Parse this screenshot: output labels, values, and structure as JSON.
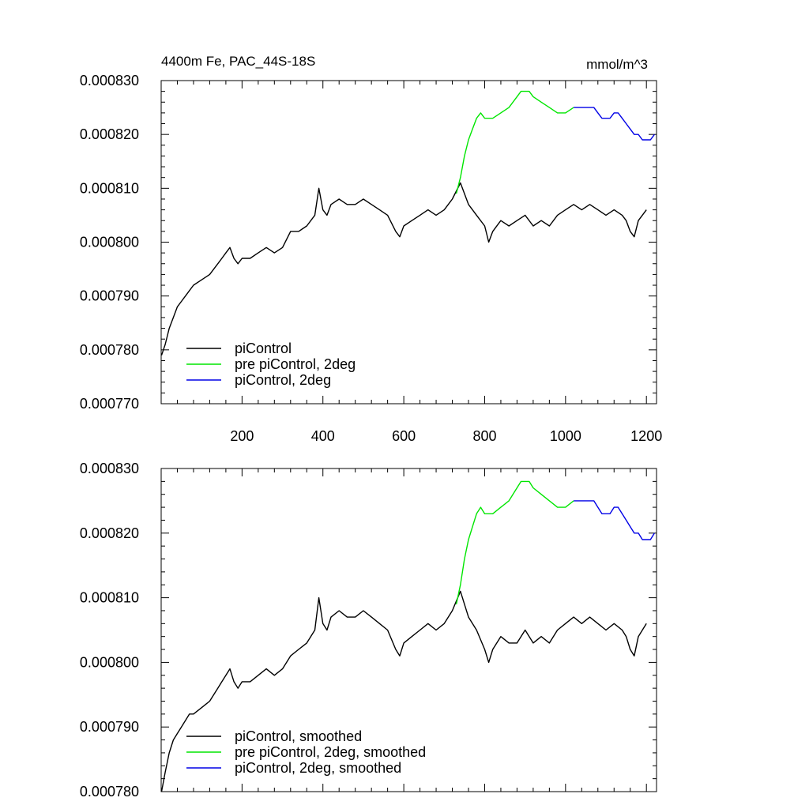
{
  "chart_data": [
    {
      "type": "line",
      "title": "4400m Fe, PAC_44S-18S",
      "units": "mmol/m^3",
      "xlim": [
        0,
        1225
      ],
      "ylim": [
        0.00077,
        0.00083
      ],
      "xticks": [
        200,
        400,
        600,
        800,
        1000,
        1200
      ],
      "xtick_labels": [
        "200",
        "400",
        "600",
        "800",
        "1000",
        "1200"
      ],
      "yticks": [
        0.00077,
        0.00078,
        0.00079,
        0.0008,
        0.00081,
        0.00082,
        0.00083
      ],
      "ytick_labels": [
        "0.000770",
        "0.000780",
        "0.000790",
        "0.000800",
        "0.000810",
        "0.000820",
        "0.000830"
      ],
      "legend_position": "bottom-left",
      "series": [
        {
          "name": "piControl",
          "color": "#000000",
          "x": [
            1,
            10,
            20,
            30,
            40,
            50,
            60,
            70,
            80,
            100,
            120,
            140,
            150,
            160,
            170,
            180,
            190,
            200,
            220,
            240,
            260,
            280,
            300,
            320,
            340,
            360,
            380,
            390,
            400,
            410,
            420,
            440,
            460,
            480,
            500,
            520,
            540,
            560,
            580,
            590,
            600,
            620,
            640,
            660,
            680,
            700,
            720,
            740,
            750,
            760,
            780,
            800,
            810,
            820,
            840,
            860,
            880,
            900,
            920,
            940,
            960,
            980,
            1000,
            1020,
            1040,
            1060,
            1080,
            1100,
            1120,
            1140,
            1150,
            1160,
            1170,
            1180,
            1200
          ],
          "y": [
            0.000779,
            0.000781,
            0.000784,
            0.000786,
            0.000788,
            0.000789,
            0.00079,
            0.000791,
            0.000792,
            0.000793,
            0.000794,
            0.000796,
            0.000797,
            0.000798,
            0.000799,
            0.000797,
            0.000796,
            0.000797,
            0.000797,
            0.000798,
            0.000799,
            0.000798,
            0.000799,
            0.000802,
            0.000802,
            0.000803,
            0.000805,
            0.00081,
            0.000806,
            0.000805,
            0.000807,
            0.000808,
            0.000807,
            0.000807,
            0.000808,
            0.000807,
            0.000806,
            0.000805,
            0.000802,
            0.000801,
            0.000803,
            0.000804,
            0.000805,
            0.000806,
            0.000805,
            0.000806,
            0.000808,
            0.000811,
            0.000809,
            0.000807,
            0.000805,
            0.000803,
            0.0008,
            0.000802,
            0.000804,
            0.000803,
            0.000804,
            0.000805,
            0.000803,
            0.000804,
            0.000803,
            0.000805,
            0.000806,
            0.000807,
            0.000806,
            0.000807,
            0.000806,
            0.000805,
            0.000806,
            0.000805,
            0.000804,
            0.000802,
            0.000801,
            0.000804,
            0.000806
          ]
        },
        {
          "name": "pre piControl, 2deg",
          "color": "#00e600",
          "x": [
            730,
            740,
            750,
            760,
            770,
            780,
            790,
            800,
            820,
            840,
            860,
            880,
            890,
            900,
            910,
            920,
            940,
            960,
            980,
            1000,
            1020
          ],
          "y": [
            0.000809,
            0.000812,
            0.000816,
            0.000819,
            0.000821,
            0.000823,
            0.000824,
            0.000823,
            0.000823,
            0.000824,
            0.000825,
            0.000827,
            0.000828,
            0.000828,
            0.000828,
            0.000827,
            0.000826,
            0.000825,
            0.000824,
            0.000824,
            0.000825
          ]
        },
        {
          "name": "piControl, 2deg",
          "color": "#0000e6",
          "x": [
            1020,
            1040,
            1060,
            1070,
            1080,
            1090,
            1100,
            1110,
            1120,
            1130,
            1140,
            1150,
            1160,
            1170,
            1180,
            1190,
            1200,
            1210,
            1220
          ],
          "y": [
            0.000825,
            0.000825,
            0.000825,
            0.000825,
            0.000824,
            0.000823,
            0.000823,
            0.000823,
            0.000824,
            0.000824,
            0.000823,
            0.000822,
            0.000821,
            0.00082,
            0.00082,
            0.000819,
            0.000819,
            0.000819,
            0.00082
          ]
        }
      ]
    },
    {
      "type": "line",
      "xlim": [
        0,
        1225
      ],
      "ylim": [
        0.00078,
        0.00083
      ],
      "xticks": [
        200,
        400,
        600,
        800,
        1000,
        1200
      ],
      "yticks": [
        0.00078,
        0.00079,
        0.0008,
        0.00081,
        0.00082,
        0.00083
      ],
      "ytick_labels": [
        "0.000780",
        "0.000790",
        "0.000800",
        "0.000810",
        "0.000820",
        "0.000830"
      ],
      "legend_position": "bottom-left",
      "series": [
        {
          "name": "piControl, smoothed",
          "color": "#000000",
          "x": [
            1,
            10,
            20,
            30,
            40,
            50,
            60,
            70,
            80,
            100,
            120,
            140,
            150,
            160,
            170,
            180,
            190,
            200,
            220,
            240,
            260,
            280,
            300,
            320,
            340,
            360,
            380,
            390,
            400,
            410,
            420,
            440,
            460,
            480,
            500,
            520,
            540,
            560,
            580,
            590,
            600,
            620,
            640,
            660,
            680,
            700,
            720,
            740,
            750,
            760,
            780,
            800,
            810,
            820,
            840,
            860,
            880,
            900,
            920,
            940,
            960,
            980,
            1000,
            1020,
            1040,
            1060,
            1080,
            1100,
            1120,
            1140,
            1150,
            1160,
            1170,
            1180,
            1200
          ],
          "y": [
            0.00078,
            0.000783,
            0.000786,
            0.000788,
            0.000789,
            0.00079,
            0.000791,
            0.000792,
            0.000792,
            0.000793,
            0.000794,
            0.000796,
            0.000797,
            0.000798,
            0.000799,
            0.000797,
            0.000796,
            0.000797,
            0.000797,
            0.000798,
            0.000799,
            0.000798,
            0.000799,
            0.000801,
            0.000802,
            0.000803,
            0.000805,
            0.00081,
            0.000806,
            0.000805,
            0.000807,
            0.000808,
            0.000807,
            0.000807,
            0.000808,
            0.000807,
            0.000806,
            0.000805,
            0.000802,
            0.000801,
            0.000803,
            0.000804,
            0.000805,
            0.000806,
            0.000805,
            0.000806,
            0.000808,
            0.000811,
            0.000809,
            0.000807,
            0.000805,
            0.000802,
            0.0008,
            0.000802,
            0.000804,
            0.000803,
            0.000803,
            0.000805,
            0.000803,
            0.000804,
            0.000803,
            0.000805,
            0.000806,
            0.000807,
            0.000806,
            0.000807,
            0.000806,
            0.000805,
            0.000806,
            0.000805,
            0.000804,
            0.000802,
            0.000801,
            0.000804,
            0.000806
          ]
        },
        {
          "name": "pre piControl, 2deg, smoothed",
          "color": "#00e600",
          "x": [
            730,
            740,
            750,
            760,
            770,
            780,
            790,
            800,
            820,
            840,
            860,
            880,
            890,
            900,
            910,
            920,
            940,
            960,
            980,
            1000,
            1020
          ],
          "y": [
            0.000809,
            0.000812,
            0.000816,
            0.000819,
            0.000821,
            0.000823,
            0.000824,
            0.000823,
            0.000823,
            0.000824,
            0.000825,
            0.000827,
            0.000828,
            0.000828,
            0.000828,
            0.000827,
            0.000826,
            0.000825,
            0.000824,
            0.000824,
            0.000825
          ]
        },
        {
          "name": "piControl, 2deg, smoothed",
          "color": "#0000e6",
          "x": [
            1020,
            1040,
            1060,
            1070,
            1080,
            1090,
            1100,
            1110,
            1120,
            1130,
            1140,
            1150,
            1160,
            1170,
            1180,
            1190,
            1200,
            1210,
            1220
          ],
          "y": [
            0.000825,
            0.000825,
            0.000825,
            0.000825,
            0.000824,
            0.000823,
            0.000823,
            0.000823,
            0.000824,
            0.000824,
            0.000823,
            0.000822,
            0.000821,
            0.00082,
            0.00082,
            0.000819,
            0.000819,
            0.000819,
            0.00082
          ]
        }
      ]
    }
  ]
}
